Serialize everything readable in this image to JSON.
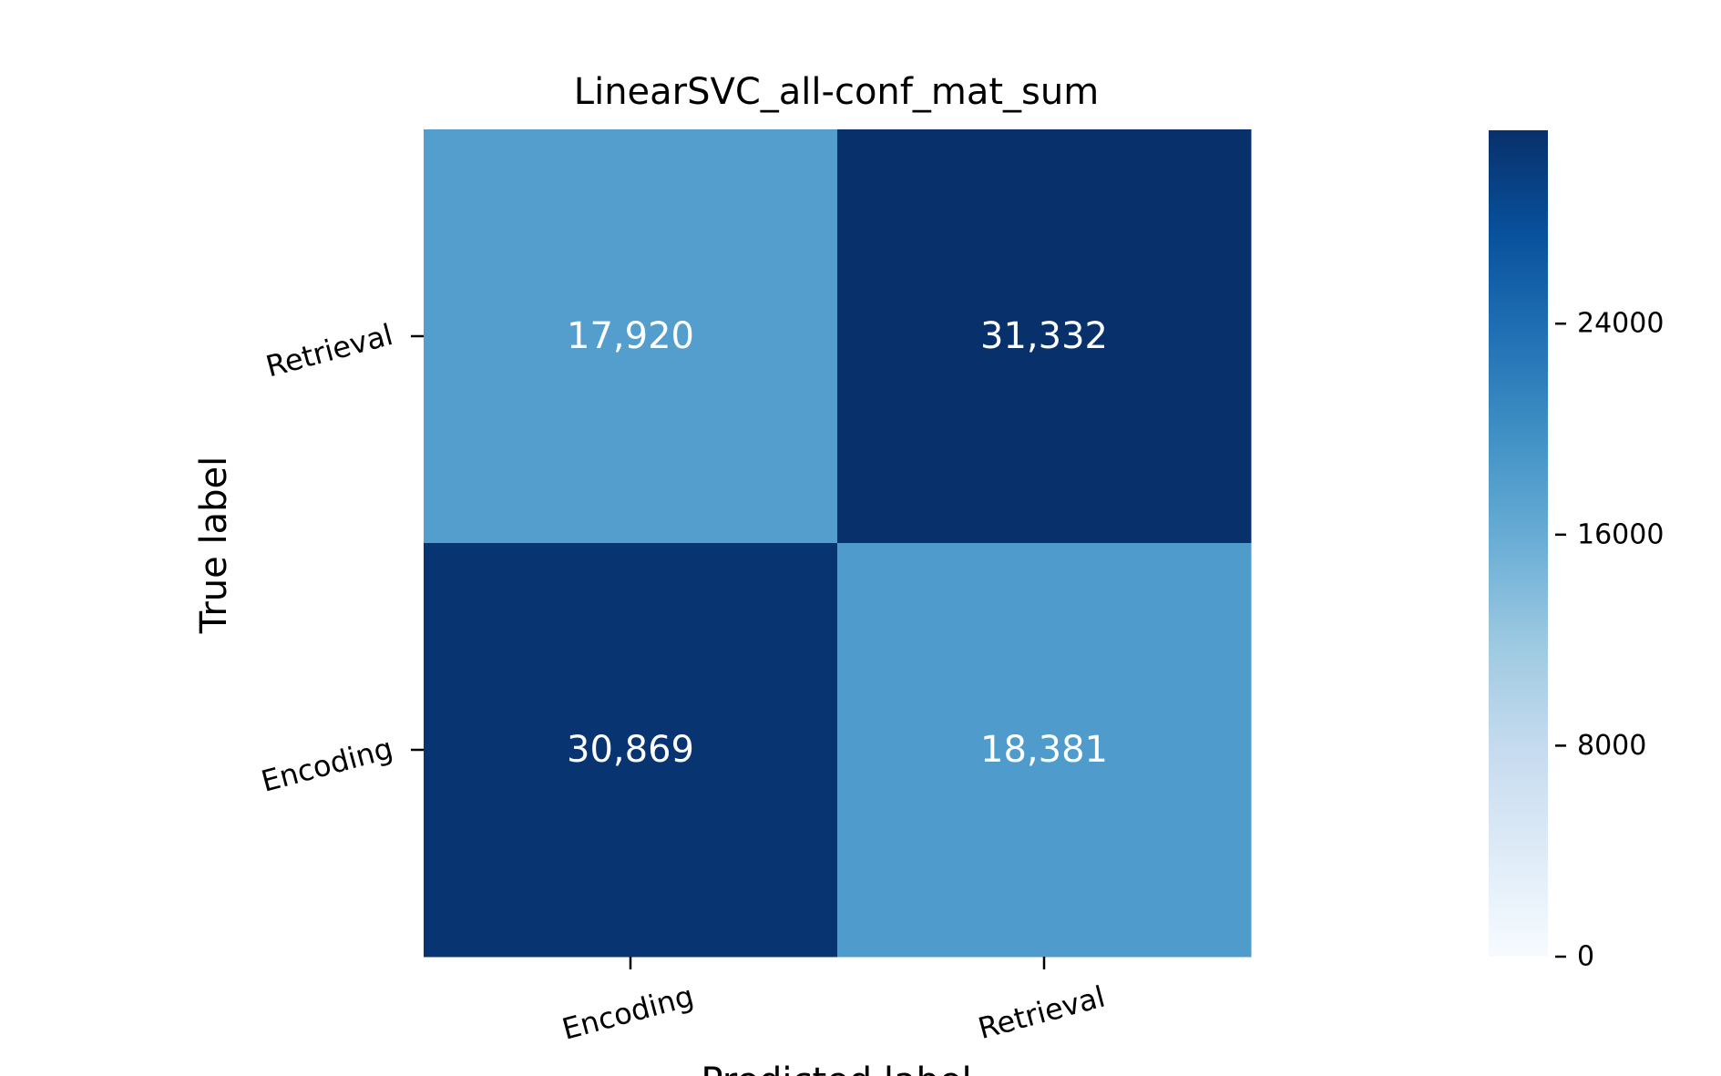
{
  "chart_data": {
    "type": "heatmap",
    "title": "LinearSVC_all-conf_mat_sum",
    "xlabel": "Predicted label",
    "ylabel": "True label",
    "x_categories": [
      "Encoding",
      "Retrieval"
    ],
    "y_categories": [
      "Retrieval",
      "Encoding"
    ],
    "cells": [
      {
        "row": 0,
        "col": 0,
        "value": 17920,
        "label": "17,920"
      },
      {
        "row": 0,
        "col": 1,
        "value": 31332,
        "label": "31,332"
      },
      {
        "row": 1,
        "col": 0,
        "value": 30869,
        "label": "30,869"
      },
      {
        "row": 1,
        "col": 1,
        "value": 18381,
        "label": "18,381"
      }
    ],
    "colorbar": {
      "range": [
        0,
        31332
      ],
      "ticks": [
        0,
        8000,
        16000,
        24000
      ],
      "tick_labels": [
        "0",
        "8000",
        "16000",
        "24000"
      ],
      "colormap": "Blues"
    },
    "colors": {
      "cell_text": "#ffffff",
      "axis_text": "#000000"
    }
  }
}
